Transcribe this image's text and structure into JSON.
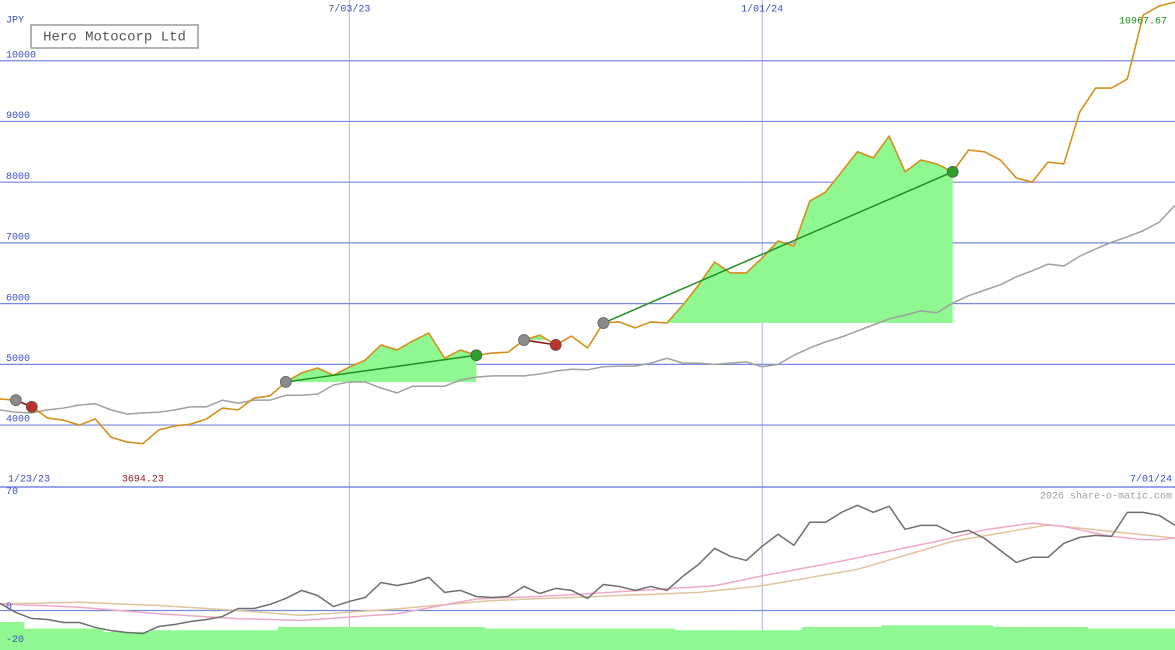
{
  "chart_data": [
    {
      "type": "line",
      "title": "Hero Motocorp Ltd",
      "unit": "JPY",
      "x": [
        1,
        2,
        3,
        4,
        5,
        6,
        7,
        8,
        9,
        10,
        11,
        12,
        13,
        14,
        15,
        16,
        17,
        18,
        19,
        20,
        21,
        22,
        23,
        24,
        25,
        26,
        27,
        28,
        29,
        30,
        31,
        32,
        33,
        34,
        35,
        36,
        37,
        38,
        39,
        40,
        41,
        42,
        43,
        44,
        45,
        46,
        47,
        48,
        49,
        50,
        51,
        52,
        53,
        54,
        55,
        56,
        57,
        58,
        59,
        60,
        61,
        62,
        63,
        64,
        65,
        66,
        67,
        68,
        69,
        70,
        71,
        72,
        73,
        74,
        75
      ],
      "xlim": [
        1,
        75
      ],
      "xticks": [
        {
          "value": 23,
          "label": "7/03/23"
        },
        {
          "value": 49,
          "label": "1/01/24"
        }
      ],
      "x_range_labels": [
        "1/23/23",
        "7/01/24"
      ],
      "ylim": [
        2980,
        11000
      ],
      "yticks": [
        4000,
        5000,
        6000,
        7000,
        8000,
        9000,
        10000
      ],
      "grid": true,
      "series": [
        {
          "color": "#d4901c",
          "values": [
            4430,
            4410,
            4300,
            4115,
            4080,
            4000,
            4100,
            3800,
            3720,
            3694.23,
            3920,
            3985,
            4015,
            4100,
            4280,
            4250,
            4445,
            4480,
            4710,
            4860,
            4940,
            4820,
            4955,
            5070,
            5320,
            5235,
            5385,
            5515,
            5100,
            5235,
            5150,
            5185,
            5200,
            5400,
            5480,
            5320,
            5465,
            5270,
            5680,
            5700,
            5600,
            5700,
            5680,
            5975,
            6305,
            6685,
            6505,
            6505,
            6750,
            7030,
            6950,
            7690,
            7840,
            8170,
            8500,
            8400,
            8760,
            8170,
            8365,
            8300,
            8170,
            8530,
            8500,
            8365,
            8070,
            8000,
            8330,
            8300,
            9155,
            9550,
            9550,
            9700,
            10755,
            10900,
            10967.67
          ]
        },
        {
          "color": "#a0a0a0",
          "values": [
            4250,
            4210,
            4200,
            4250,
            4280,
            4330,
            4350,
            4250,
            4180,
            4200,
            4210,
            4250,
            4300,
            4300,
            4410,
            4360,
            4410,
            4410,
            4490,
            4490,
            4510,
            4660,
            4710,
            4710,
            4610,
            4530,
            4640,
            4640,
            4640,
            4740,
            4790,
            4810,
            4810,
            4810,
            4840,
            4890,
            4920,
            4910,
            4960,
            4970,
            4970,
            5020,
            5100,
            5020,
            5020,
            5000,
            5020,
            5040,
            4960,
            5000,
            5150,
            5270,
            5370,
            5450,
            5550,
            5650,
            5750,
            5810,
            5880,
            5850,
            6010,
            6130,
            6220,
            6310,
            6440,
            6540,
            6650,
            6620,
            6780,
            6900,
            7010,
            7100,
            7200,
            7340,
            7620
          ]
        }
      ],
      "trades": [
        {
          "entry": 2,
          "exit": 3
        },
        {
          "entry": 19,
          "exit": 31
        },
        {
          "entry": 34,
          "exit": 36
        },
        {
          "entry": 39,
          "exit": 61
        }
      ],
      "fill_color": "#90f890",
      "entry_color": "#8a8a8a",
      "win_color": "#2e9e2e",
      "loss_color": "#c0302a",
      "low_color": "#8b1a1a",
      "last_color": "#1f8f1f"
    },
    {
      "type": "line",
      "credit": "2026 share-o-matic.com",
      "ylim": [
        -24,
        75
      ],
      "yticks": [
        70,
        0,
        -20
      ],
      "series": [
        {
          "type": "bar",
          "color": "#90f890",
          "values": [
            -7,
            -7,
            -11,
            -11,
            -11,
            -11,
            -11,
            -13,
            -13,
            -13,
            -12,
            -12,
            -12,
            -12,
            -12,
            -12,
            -12,
            -12,
            -10,
            -10,
            -10,
            -10,
            -10,
            -10,
            -10,
            -10,
            -10,
            -10,
            -10,
            -10,
            -10,
            -11,
            -11,
            -11,
            -11,
            -11,
            -11,
            -11,
            -11,
            -11,
            -11,
            -11,
            -11,
            -12,
            -12,
            -12,
            -12,
            -12,
            -12,
            -12,
            -12,
            -10,
            -10,
            -10,
            -10,
            -10,
            -9,
            -9,
            -9,
            -9,
            -9,
            -9,
            -9,
            -10,
            -10,
            -10,
            -10,
            -10,
            -10,
            -11,
            -11,
            -11,
            -11,
            -11,
            -11
          ]
        },
        {
          "color": "#e2c49c",
          "values": [
            4,
            4.2,
            4.4,
            4.6,
            4.8,
            5,
            4.6,
            4.2,
            3.8,
            3.4,
            3,
            2.4,
            1.8,
            1.2,
            0.6,
            0,
            -0.8,
            -1.5,
            -2.3,
            -3,
            -2.3,
            -1.7,
            -1,
            -0.3,
            0.3,
            1,
            1.8,
            2.7,
            3.5,
            4.3,
            5.2,
            6,
            6.4,
            6.8,
            7.2,
            7.5,
            7.9,
            8.3,
            8.7,
            9.1,
            9.5,
            9.8,
            10.2,
            10.6,
            11,
            12,
            13,
            14,
            15,
            16.7,
            18.3,
            20,
            21.7,
            23.3,
            25,
            27.8,
            30.7,
            33.5,
            36.3,
            39.2,
            42,
            43.7,
            45.3,
            47,
            48.7,
            50.3,
            52,
            51,
            50,
            49,
            48,
            47,
            46,
            45,
            44
          ]
        },
        {
          "color": "#f0a8c8",
          "values": [
            4,
            3.6,
            3.2,
            2.8,
            2.4,
            2,
            1.2,
            0.4,
            -0.4,
            -1.2,
            -2,
            -2.6,
            -3.2,
            -3.8,
            -4.4,
            -5,
            -5.2,
            -5.5,
            -5.8,
            -6,
            -5.3,
            -4.7,
            -4,
            -3.3,
            -2.7,
            -2,
            -0.2,
            1.6,
            3.4,
            5.2,
            7,
            7.4,
            7.8,
            8.2,
            8.6,
            9,
            9.6,
            10.2,
            10.8,
            11.4,
            12,
            12.6,
            13.2,
            13.8,
            14.4,
            15,
            17,
            19,
            21,
            22.8,
            24.6,
            26.4,
            28.2,
            30,
            32,
            34,
            36,
            38,
            40,
            42,
            44.3,
            46.7,
            49,
            50.3,
            51.7,
            53,
            52,
            51,
            49,
            47,
            45,
            44,
            43,
            43,
            44
          ]
        },
        {
          "color": "#6e6e6e",
          "values": [
            4.3,
            -1.2,
            -4.9,
            -5.5,
            -7.3,
            -7.3,
            -10.3,
            -12.2,
            -13.4,
            -14,
            -9.7,
            -8.5,
            -6.7,
            -5.5,
            -3.7,
            1.2,
            1.2,
            3.7,
            7.3,
            12.2,
            9.1,
            2.4,
            5.5,
            7.9,
            17,
            15.2,
            17,
            20.1,
            11,
            12.2,
            8.5,
            7.9,
            8.5,
            14.6,
            10.3,
            13.4,
            12.2,
            7.3,
            15.8,
            14.6,
            12.2,
            14.6,
            12.2,
            20.7,
            28,
            37.7,
            32.9,
            30.4,
            39,
            46.3,
            39.6,
            53.6,
            53.6,
            59.6,
            63.9,
            59.6,
            63.3,
            49.3,
            51.7,
            51.7,
            46.9,
            48.7,
            43.8,
            36.5,
            29.2,
            32.3,
            32.3,
            40.8,
            44.4,
            45.6,
            45,
            59.6,
            59.6,
            57.8,
            51.7
          ]
        }
      ]
    }
  ]
}
